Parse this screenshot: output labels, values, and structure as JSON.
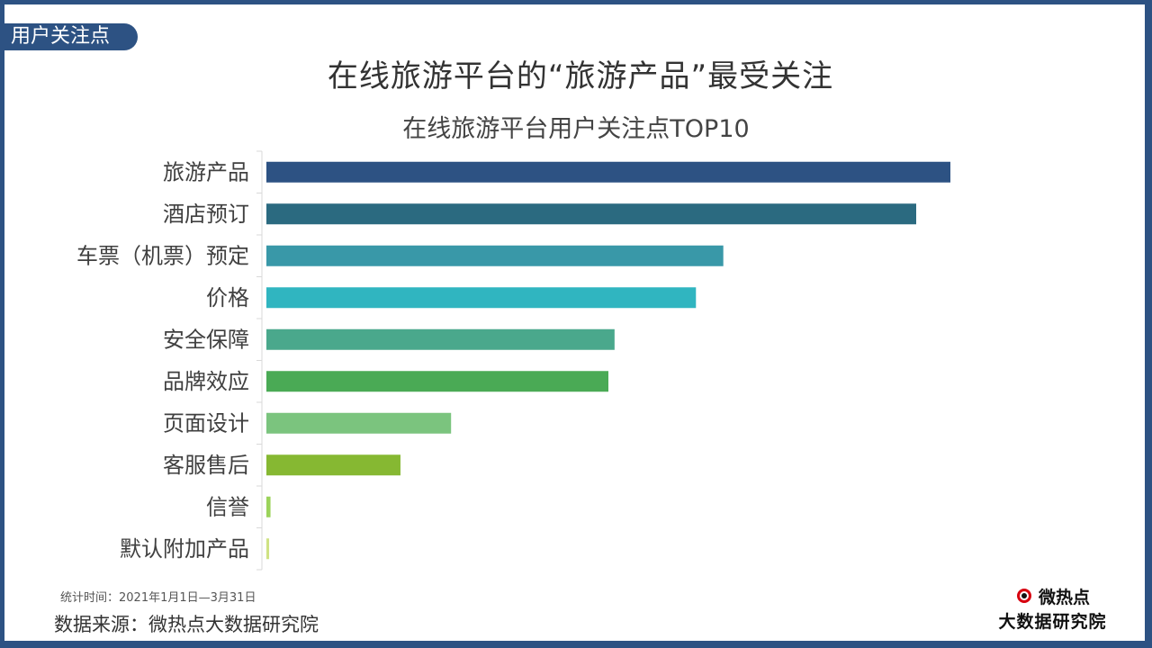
{
  "tag": "用户关注点",
  "main_title": "在线旅游平台的“旅游产品”最受关注",
  "footer": {
    "period": "统计时间：2021年1月1日—3月31日",
    "source": "数据来源：微热点大数据研究院"
  },
  "logo": {
    "icon": "weibo-eye-icon",
    "name": "微热点",
    "org": "大数据研究院"
  },
  "chart_data": {
    "type": "bar",
    "orientation": "horizontal",
    "title": "在线旅游平台用户关注点TOP10",
    "xlabel": "",
    "ylabel": "",
    "xlim": [
      0,
      100
    ],
    "grid": false,
    "categories": [
      "旅游产品",
      "酒店预订",
      "车票（机票）预定",
      "价格",
      "安全保障",
      "品牌效应",
      "页面设计",
      "客服售后",
      "信誉",
      "默认附加产品"
    ],
    "values": [
      100,
      95,
      66.8,
      62.8,
      50.9,
      50,
      27,
      19.6,
      0.6,
      0.4
    ],
    "colors": [
      "#2d5283",
      "#2b6a80",
      "#3998a8",
      "#30b5c0",
      "#4aa88c",
      "#4aaa55",
      "#7bc47e",
      "#86b832",
      "#9bd35a",
      "#cfe283"
    ]
  }
}
